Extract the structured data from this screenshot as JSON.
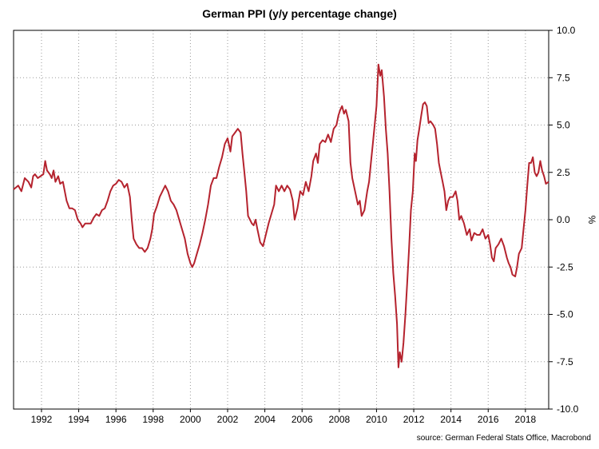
{
  "chart_data": {
    "type": "line",
    "title": "German PPI (y/y percentage change)",
    "ylabel": "%",
    "xlabel": "",
    "source": "source: German Federal Stats Office, Macrobond",
    "xlim": [
      1990.5,
      2019.25
    ],
    "ylim": [
      -10,
      10
    ],
    "x_ticks": [
      1992,
      1994,
      1996,
      1998,
      2000,
      2002,
      2004,
      2006,
      2008,
      2010,
      2012,
      2014,
      2016,
      2018
    ],
    "y_ticks": [
      10.0,
      7.5,
      5.0,
      2.5,
      0.0,
      -2.5,
      -5.0,
      -7.5,
      -10.0
    ],
    "y_tick_labels": [
      "10.0",
      "7.5",
      "5.0",
      "2.5",
      "0.0",
      "-2.5",
      "-5.0",
      "-7.5",
      "-10.0"
    ],
    "grid": true,
    "series": [
      {
        "name": "",
        "color": "#b5232e",
        "points": [
          [
            1990.5,
            1.6
          ],
          [
            1990.75,
            1.8
          ],
          [
            1990.92,
            1.5
          ],
          [
            1991.1,
            2.2
          ],
          [
            1991.3,
            2.0
          ],
          [
            1991.45,
            1.7
          ],
          [
            1991.55,
            2.3
          ],
          [
            1991.65,
            2.4
          ],
          [
            1991.8,
            2.2
          ],
          [
            1991.95,
            2.3
          ],
          [
            1992.1,
            2.4
          ],
          [
            1992.2,
            3.1
          ],
          [
            1992.3,
            2.6
          ],
          [
            1992.45,
            2.4
          ],
          [
            1992.55,
            2.2
          ],
          [
            1992.65,
            2.6
          ],
          [
            1992.75,
            2.0
          ],
          [
            1992.9,
            2.3
          ],
          [
            1993.0,
            1.9
          ],
          [
            1993.15,
            2.0
          ],
          [
            1993.25,
            1.5
          ],
          [
            1993.35,
            1.0
          ],
          [
            1993.5,
            0.6
          ],
          [
            1993.65,
            0.6
          ],
          [
            1993.8,
            0.5
          ],
          [
            1993.95,
            0.0
          ],
          [
            1994.1,
            -0.2
          ],
          [
            1994.2,
            -0.4
          ],
          [
            1994.35,
            -0.2
          ],
          [
            1994.5,
            -0.2
          ],
          [
            1994.65,
            -0.2
          ],
          [
            1994.8,
            0.1
          ],
          [
            1994.95,
            0.3
          ],
          [
            1995.1,
            0.2
          ],
          [
            1995.25,
            0.5
          ],
          [
            1995.4,
            0.6
          ],
          [
            1995.55,
            1.0
          ],
          [
            1995.7,
            1.5
          ],
          [
            1995.85,
            1.8
          ],
          [
            1996.0,
            1.9
          ],
          [
            1996.15,
            2.1
          ],
          [
            1996.3,
            2.0
          ],
          [
            1996.45,
            1.7
          ],
          [
            1996.6,
            1.9
          ],
          [
            1996.75,
            1.2
          ],
          [
            1996.85,
            0.0
          ],
          [
            1996.95,
            -1.0
          ],
          [
            1997.1,
            -1.3
          ],
          [
            1997.25,
            -1.5
          ],
          [
            1997.4,
            -1.5
          ],
          [
            1997.55,
            -1.7
          ],
          [
            1997.7,
            -1.5
          ],
          [
            1997.85,
            -1.0
          ],
          [
            1997.95,
            -0.5
          ],
          [
            1998.05,
            0.3
          ],
          [
            1998.2,
            0.7
          ],
          [
            1998.35,
            1.2
          ],
          [
            1998.5,
            1.5
          ],
          [
            1998.65,
            1.8
          ],
          [
            1998.8,
            1.5
          ],
          [
            1998.95,
            1.0
          ],
          [
            1999.1,
            0.8
          ],
          [
            1999.25,
            0.5
          ],
          [
            1999.4,
            0.0
          ],
          [
            1999.55,
            -0.5
          ],
          [
            1999.7,
            -1.0
          ],
          [
            1999.85,
            -1.8
          ],
          [
            2000.0,
            -2.3
          ],
          [
            2000.1,
            -2.5
          ],
          [
            2000.2,
            -2.3
          ],
          [
            2000.35,
            -1.8
          ],
          [
            2000.5,
            -1.3
          ],
          [
            2000.65,
            -0.7
          ],
          [
            2000.8,
            0.0
          ],
          [
            2000.95,
            0.8
          ],
          [
            2001.1,
            1.8
          ],
          [
            2001.25,
            2.2
          ],
          [
            2001.4,
            2.2
          ],
          [
            2001.55,
            2.8
          ],
          [
            2001.7,
            3.3
          ],
          [
            2001.85,
            4.0
          ],
          [
            2002.0,
            4.3
          ],
          [
            2002.15,
            3.6
          ],
          [
            2002.25,
            4.4
          ],
          [
            2002.4,
            4.6
          ],
          [
            2002.55,
            4.8
          ],
          [
            2002.7,
            4.6
          ],
          [
            2002.8,
            3.5
          ],
          [
            2002.9,
            2.5
          ],
          [
            2003.0,
            1.5
          ],
          [
            2003.1,
            0.2
          ],
          [
            2003.2,
            0.0
          ],
          [
            2003.3,
            -0.2
          ],
          [
            2003.4,
            -0.3
          ],
          [
            2003.5,
            0.0
          ],
          [
            2003.6,
            -0.5
          ],
          [
            2003.75,
            -1.2
          ],
          [
            2003.9,
            -1.4
          ],
          [
            2004.05,
            -0.8
          ],
          [
            2004.2,
            -0.2
          ],
          [
            2004.35,
            0.3
          ],
          [
            2004.5,
            0.8
          ],
          [
            2004.6,
            1.8
          ],
          [
            2004.75,
            1.5
          ],
          [
            2004.9,
            1.8
          ],
          [
            2005.05,
            1.5
          ],
          [
            2005.2,
            1.8
          ],
          [
            2005.35,
            1.6
          ],
          [
            2005.5,
            1.0
          ],
          [
            2005.6,
            0.0
          ],
          [
            2005.75,
            0.6
          ],
          [
            2005.9,
            1.5
          ],
          [
            2006.05,
            1.3
          ],
          [
            2006.2,
            2.0
          ],
          [
            2006.35,
            1.5
          ],
          [
            2006.5,
            2.3
          ],
          [
            2006.6,
            3.1
          ],
          [
            2006.75,
            3.5
          ],
          [
            2006.85,
            3.0
          ],
          [
            2006.95,
            4.0
          ],
          [
            2007.1,
            4.2
          ],
          [
            2007.25,
            4.1
          ],
          [
            2007.4,
            4.5
          ],
          [
            2007.55,
            4.1
          ],
          [
            2007.7,
            4.8
          ],
          [
            2007.85,
            5.0
          ],
          [
            2007.95,
            5.5
          ],
          [
            2008.05,
            5.8
          ],
          [
            2008.15,
            6.0
          ],
          [
            2008.25,
            5.6
          ],
          [
            2008.35,
            5.8
          ],
          [
            2008.5,
            5.2
          ],
          [
            2008.6,
            3.0
          ],
          [
            2008.7,
            2.2
          ],
          [
            2008.85,
            1.5
          ],
          [
            2009.0,
            0.8
          ],
          [
            2009.1,
            1.0
          ],
          [
            2009.2,
            0.2
          ],
          [
            2009.35,
            0.5
          ],
          [
            2009.5,
            1.5
          ],
          [
            2009.6,
            2.0
          ],
          [
            2009.7,
            3.0
          ],
          [
            2009.8,
            4.0
          ],
          [
            2009.9,
            5.0
          ],
          [
            2010.0,
            6.0
          ],
          [
            2010.1,
            8.2
          ],
          [
            2010.2,
            7.6
          ],
          [
            2010.28,
            7.9
          ],
          [
            2010.4,
            6.5
          ],
          [
            2010.5,
            4.8
          ],
          [
            2010.6,
            3.5
          ],
          [
            2010.7,
            1.5
          ],
          [
            2010.8,
            -1.0
          ],
          [
            2010.9,
            -2.8
          ],
          [
            2011.0,
            -4.0
          ],
          [
            2011.1,
            -5.5
          ],
          [
            2011.18,
            -7.8
          ],
          [
            2011.25,
            -7.0
          ],
          [
            2011.35,
            -7.5
          ],
          [
            2011.45,
            -6.5
          ],
          [
            2011.55,
            -5.0
          ],
          [
            2011.65,
            -3.3
          ],
          [
            2011.75,
            -1.5
          ],
          [
            2011.85,
            0.5
          ],
          [
            2011.95,
            1.5
          ],
          [
            2012.05,
            3.5
          ],
          [
            2012.12,
            3.1
          ],
          [
            2012.2,
            4.2
          ],
          [
            2012.3,
            4.8
          ],
          [
            2012.4,
            5.5
          ],
          [
            2012.5,
            6.1
          ],
          [
            2012.6,
            6.2
          ],
          [
            2012.7,
            6.0
          ],
          [
            2012.8,
            5.1
          ],
          [
            2012.9,
            5.2
          ],
          [
            2013.05,
            5.0
          ],
          [
            2013.15,
            4.8
          ],
          [
            2013.25,
            4.0
          ],
          [
            2013.35,
            3.0
          ],
          [
            2013.45,
            2.5
          ],
          [
            2013.55,
            2.0
          ],
          [
            2013.65,
            1.5
          ],
          [
            2013.75,
            0.5
          ],
          [
            2013.85,
            1.0
          ],
          [
            2013.95,
            1.2
          ],
          [
            2014.1,
            1.2
          ],
          [
            2014.25,
            1.5
          ],
          [
            2014.35,
            1.0
          ],
          [
            2014.45,
            0.0
          ],
          [
            2014.55,
            0.2
          ],
          [
            2014.7,
            -0.2
          ],
          [
            2014.85,
            -0.8
          ],
          [
            2015.0,
            -0.5
          ],
          [
            2015.1,
            -1.1
          ],
          [
            2015.25,
            -0.7
          ],
          [
            2015.4,
            -0.8
          ],
          [
            2015.55,
            -0.8
          ],
          [
            2015.7,
            -0.5
          ],
          [
            2015.85,
            -1.0
          ],
          [
            2016.0,
            -0.8
          ],
          [
            2016.1,
            -1.3
          ],
          [
            2016.2,
            -2.0
          ],
          [
            2016.3,
            -2.2
          ],
          [
            2016.4,
            -1.5
          ],
          [
            2016.55,
            -1.3
          ],
          [
            2016.7,
            -1.0
          ],
          [
            2016.85,
            -1.4
          ],
          [
            2017.0,
            -2.0
          ],
          [
            2017.1,
            -2.3
          ],
          [
            2017.2,
            -2.5
          ],
          [
            2017.3,
            -2.9
          ],
          [
            2017.45,
            -3.0
          ],
          [
            2017.55,
            -2.5
          ],
          [
            2017.65,
            -1.8
          ],
          [
            2017.8,
            -1.5
          ],
          [
            2017.9,
            -0.5
          ],
          [
            2018.0,
            0.5
          ],
          [
            2018.1,
            1.8
          ],
          [
            2018.2,
            3.0
          ],
          [
            2018.3,
            3.0
          ],
          [
            2018.4,
            3.3
          ],
          [
            2018.5,
            2.5
          ],
          [
            2018.6,
            2.3
          ],
          [
            2018.7,
            2.5
          ],
          [
            2018.8,
            3.1
          ],
          [
            2018.9,
            2.6
          ],
          [
            2019.0,
            2.3
          ],
          [
            2019.1,
            1.9
          ],
          [
            2019.25,
            2.0
          ]
        ]
      }
    ]
  }
}
